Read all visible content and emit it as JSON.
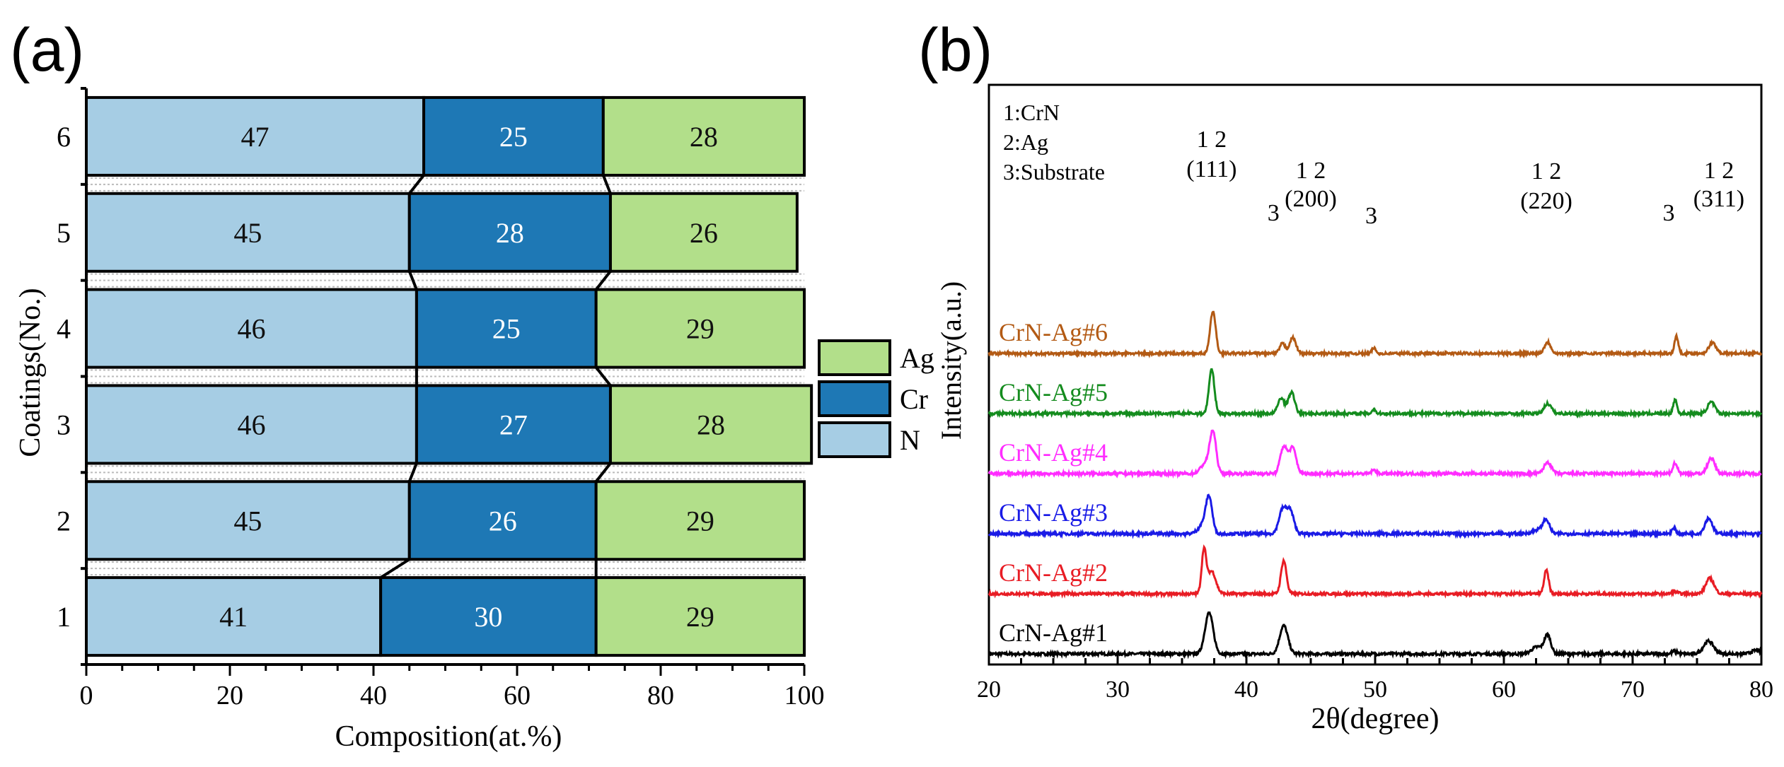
{
  "panel_a": {
    "label": "(a)",
    "chart_data": {
      "type": "bar",
      "orientation": "horizontal",
      "stacked": true,
      "title": "",
      "xlabel": "Composition(at.%)",
      "ylabel": "Coatings(No.)",
      "xlim": [
        0,
        100
      ],
      "x_ticks": [
        "0",
        "20",
        "40",
        "60",
        "80",
        "100"
      ],
      "categories": [
        "1",
        "2",
        "3",
        "4",
        "5",
        "6"
      ],
      "series": [
        {
          "name": "N",
          "color": "#a6cde4",
          "values": [
            41,
            45,
            46,
            46,
            45,
            47
          ],
          "labels": [
            "41",
            "45",
            "46",
            "46",
            "45",
            "47"
          ]
        },
        {
          "name": "Cr",
          "color": "#1e78b5",
          "values": [
            30,
            26,
            27,
            25,
            28,
            25
          ],
          "labels": [
            "30",
            "26",
            "27",
            "25",
            "28",
            "25"
          ]
        },
        {
          "name": "Ag",
          "color": "#b2df8a",
          "values": [
            29,
            29,
            28,
            29,
            26,
            28
          ],
          "labels": [
            "29",
            "29",
            "28",
            "29",
            "26",
            "28"
          ]
        }
      ],
      "legend": {
        "placement": "right",
        "entries": [
          "Ag",
          "Cr",
          "N"
        ]
      }
    }
  },
  "panel_b": {
    "label": "(b)",
    "chart_data": {
      "type": "line",
      "title": "",
      "xlabel": "2θ(degree)",
      "ylabel": "Intensity(a.u.)",
      "xlim": [
        20,
        80
      ],
      "x_ticks": [
        "20",
        "30",
        "40",
        "50",
        "60",
        "70",
        "80"
      ],
      "legend_box": [
        "1:CrN",
        "2:Ag",
        "3:Substrate"
      ],
      "series": [
        {
          "name": "CrN-Ag#1",
          "color": "#000000",
          "baseline": 0,
          "noise": 2.0,
          "peaks": [
            [
              37.1,
              58,
              0.45
            ],
            [
              42.9,
              40,
              0.45
            ],
            [
              62.6,
              10,
              0.6
            ],
            [
              63.4,
              26,
              0.35
            ],
            [
              73.3,
              4,
              0.3
            ],
            [
              75.9,
              18,
              0.55
            ],
            [
              79.6,
              5,
              0.5
            ]
          ]
        },
        {
          "name": "CrN-Ag#2",
          "color": "#e81c24",
          "baseline": 85,
          "noise": 1.8,
          "peaks": [
            [
              36.7,
              60,
              0.25
            ],
            [
              37.3,
              32,
              0.45
            ],
            [
              42.9,
              47,
              0.3
            ],
            [
              63.3,
              33,
              0.25
            ],
            [
              73.3,
              3,
              0.3
            ],
            [
              76.0,
              22,
              0.45
            ]
          ]
        },
        {
          "name": "CrN-Ag#3",
          "color": "#1a1ae6",
          "baseline": 170,
          "noise": 2.0,
          "peaks": [
            [
              37.1,
              50,
              0.35
            ],
            [
              36.6,
              12,
              0.5
            ],
            [
              42.8,
              33,
              0.4
            ],
            [
              43.4,
              32,
              0.4
            ],
            [
              62.7,
              6,
              0.6
            ],
            [
              63.3,
              18,
              0.35
            ],
            [
              73.2,
              7,
              0.25
            ],
            [
              75.9,
              22,
              0.4
            ]
          ]
        },
        {
          "name": "CrN-Ag#4",
          "color": "#ff2cff",
          "baseline": 255,
          "noise": 2.0,
          "peaks": [
            [
              37.4,
              58,
              0.35
            ],
            [
              36.8,
              14,
              0.5
            ],
            [
              42.9,
              38,
              0.38
            ],
            [
              43.6,
              36,
              0.38
            ],
            [
              49.9,
              5,
              0.25
            ],
            [
              63.4,
              16,
              0.4
            ],
            [
              73.3,
              15,
              0.25
            ],
            [
              76.1,
              22,
              0.4
            ]
          ]
        },
        {
          "name": "CrN-Ag#5",
          "color": "#148c1e",
          "baseline": 340,
          "noise": 2.0,
          "peaks": [
            [
              37.3,
              62,
              0.3
            ],
            [
              42.7,
              22,
              0.35
            ],
            [
              43.5,
              30,
              0.35
            ],
            [
              49.9,
              6,
              0.2
            ],
            [
              63.4,
              14,
              0.4
            ],
            [
              73.3,
              20,
              0.2
            ],
            [
              76.1,
              16,
              0.4
            ]
          ]
        },
        {
          "name": "CrN-Ag#6",
          "color": "#b35a14",
          "baseline": 425,
          "noise": 1.8,
          "peaks": [
            [
              37.4,
              60,
              0.3
            ],
            [
              42.8,
              14,
              0.3
            ],
            [
              43.6,
              22,
              0.35
            ],
            [
              49.9,
              8,
              0.2
            ],
            [
              63.4,
              16,
              0.35
            ],
            [
              73.4,
              25,
              0.2
            ],
            [
              76.2,
              15,
              0.4
            ]
          ]
        }
      ],
      "annotations": [
        {
          "line1": "1 2",
          "line2": "(111)"
        },
        {
          "line1": "1 2",
          "line2": "(200)"
        },
        {
          "line1": "1 2",
          "line2": "(220)"
        },
        {
          "line1": "1 2",
          "line2": "(311)"
        },
        {
          "text": "3"
        },
        {
          "text": "3"
        },
        {
          "text": "3"
        }
      ]
    }
  }
}
